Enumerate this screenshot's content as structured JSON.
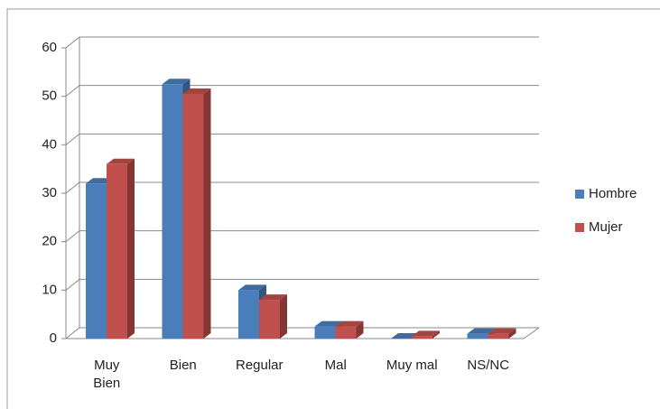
{
  "chart_data": {
    "type": "bar3d",
    "categories": [
      "Muy Bien",
      "Bien",
      "Regular",
      "Mal",
      "Muy mal",
      "NS/NC"
    ],
    "series": [
      {
        "name": "Hombre",
        "color": "#4a7ebb",
        "values": [
          32,
          52.5,
          10,
          2.5,
          0,
          1
        ]
      },
      {
        "name": "Mujer",
        "color": "#c0504d",
        "values": [
          36,
          50.5,
          8,
          2.5,
          0.5,
          1
        ]
      }
    ],
    "ylim": [
      0,
      60
    ],
    "yticks": [
      0,
      10,
      20,
      30,
      40,
      50,
      60
    ],
    "grid": true,
    "legend": "right"
  }
}
